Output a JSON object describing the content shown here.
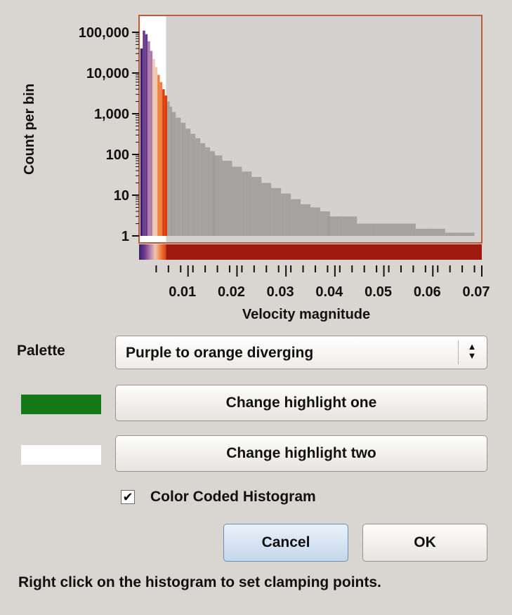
{
  "chart_data": {
    "type": "bar",
    "xlabel": "Velocity magnitude",
    "ylabel": "Count per bin",
    "yscale": "log",
    "ylim": [
      1,
      100000
    ],
    "xlim": [
      0,
      0.07
    ],
    "x_ticks": [
      0.01,
      0.02,
      0.03,
      0.04,
      0.05,
      0.06,
      0.07
    ],
    "x_tick_labels": [
      "0.01",
      "0.02",
      "0.03",
      "0.04",
      "0.05",
      "0.06",
      "0.07"
    ],
    "y_ticks": [
      1,
      10,
      100,
      1000,
      10000,
      100000
    ],
    "y_tick_labels": [
      "1",
      "10",
      "100",
      "1,000",
      "10,000",
      "100,000"
    ],
    "clamp_range": [
      0,
      0.0055
    ],
    "bins_x": [
      0.0005,
      0.001,
      0.0015,
      0.002,
      0.0025,
      0.003,
      0.0035,
      0.004,
      0.0045,
      0.005,
      0.0055,
      0.006,
      0.0065,
      0.007,
      0.008,
      0.009,
      0.01,
      0.011,
      0.012,
      0.013,
      0.014,
      0.015,
      0.016,
      0.018,
      0.02,
      0.022,
      0.024,
      0.026,
      0.028,
      0.03,
      0.032,
      0.034,
      0.036,
      0.038,
      0.04,
      0.043,
      0.046,
      0.049,
      0.052,
      0.055,
      0.058,
      0.061,
      0.064,
      0.067
    ],
    "bins_count": [
      40000,
      110000,
      90000,
      60000,
      35000,
      22000,
      14000,
      9000,
      6000,
      4000,
      2800,
      2000,
      1500,
      1100,
      800,
      600,
      430,
      320,
      250,
      190,
      150,
      120,
      95,
      70,
      50,
      38,
      28,
      20,
      15,
      11,
      8,
      6,
      5,
      4,
      3,
      3,
      2,
      2,
      2,
      2,
      1.5,
      1.5,
      1.2,
      1.2
    ]
  },
  "palette": {
    "label": "Palette",
    "selected": "Purple to orange diverging",
    "arrows_icon": "up-down-chevron-icon"
  },
  "highlights": [
    {
      "color": "#167818",
      "button_label": "Change highlight one"
    },
    {
      "color": "#ffffff",
      "button_label": "Change highlight two"
    }
  ],
  "checkbox": {
    "label": "Color Coded Histogram",
    "checked": true,
    "mark": "✔"
  },
  "buttons": {
    "cancel": "Cancel",
    "ok": "OK"
  },
  "hint": "Right click on the histogram to set clamping points.",
  "colors": {
    "plot_border": "#c05a3a",
    "plot_background": "#d3d2d1",
    "clamp_highlight": "#ffffff",
    "gray_bars": "#9e9a98",
    "color_strip": "#a01a10",
    "palette_stops": [
      "#3a2070",
      "#6a3a8a",
      "#b07aa8",
      "#f0c8b0",
      "#f08040",
      "#d84010"
    ]
  }
}
